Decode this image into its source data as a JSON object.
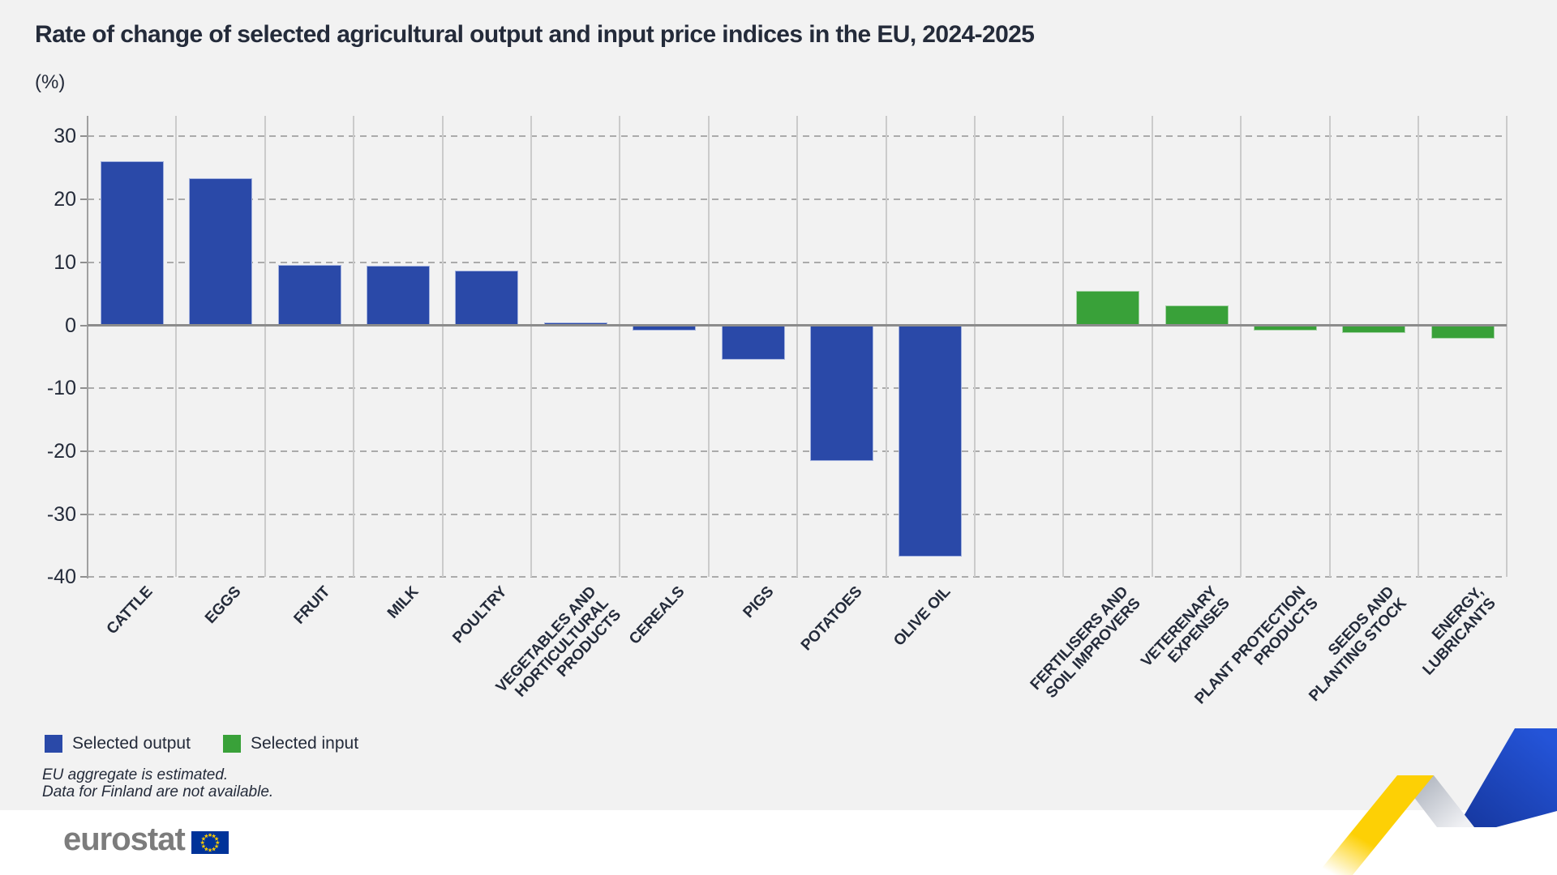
{
  "header": {
    "title": "Rate of change of selected agricultural output and input price indices in the EU, 2024-2025",
    "unit_label": "(%)"
  },
  "chart_data": {
    "type": "bar",
    "title": "Rate of change of selected agricultural output and input price indices in the EU, 2024-2025",
    "unit": "%",
    "ylim": [
      -40,
      30
    ],
    "ytick_step": 10,
    "grid": {
      "horizontal": "dashed",
      "vertical": "solid",
      "zero_line": true
    },
    "legend_position": "bottom-left",
    "categories": [
      "CATTLE",
      "EGGS",
      "FRUIT",
      "MILK",
      "POULTRY",
      "VEGETABLES AND\nHORTICULTURAL\nPRODUCTS",
      "CEREALS",
      "PIGS",
      "POTATOES",
      "OLIVE OIL",
      "FERTILISERS AND\nSOIL IMPROVERS",
      "VETERENARY\nEXPENSES",
      "PLANT PROTECTION\nPRODUCTS",
      "SEEDS AND\nPLANTING STOCK",
      "ENERGY,\nLUBRICANTS"
    ],
    "series": [
      {
        "name": "Selected output",
        "color": "#2a49a8",
        "values": [
          26.1,
          23.3,
          9.6,
          9.5,
          8.7,
          0.4,
          -0.9,
          -5.5,
          -21.6,
          -36.7,
          null,
          null,
          null,
          null,
          null
        ]
      },
      {
        "name": "Selected input",
        "color": "#39a139",
        "values": [
          null,
          null,
          null,
          null,
          null,
          null,
          null,
          null,
          null,
          null,
          5.5,
          3.2,
          -0.9,
          -1.2,
          -2.1
        ]
      }
    ],
    "group_separator_after_index": 9
  },
  "legend": [
    {
      "label": "Selected output",
      "color": "#2a49a8"
    },
    {
      "label": "Selected input",
      "color": "#39a139"
    }
  ],
  "footnotes": [
    "EU aggregate is estimated.",
    "Data for Finland are not available."
  ],
  "logo": {
    "text": "eurostat",
    "flag_blue": "#003399",
    "star_yellow": "#ffcc00"
  },
  "colors": {
    "background": "#f2f2f2",
    "footer_background": "#ffffff",
    "text": "#242b3a",
    "axis_line": "#a0a0a0",
    "grid_dashed": "#ababab",
    "grid_vertical": "#cbcbcb",
    "zero_line": "#8c8c8c",
    "logo_gray": "#7c7c7c",
    "ribbon_yellow": "#fdd005",
    "ribbon_silver": "#aab0bb",
    "ribbon_blue": "#2454d8",
    "ribbon_blue_dark": "#16379e"
  }
}
